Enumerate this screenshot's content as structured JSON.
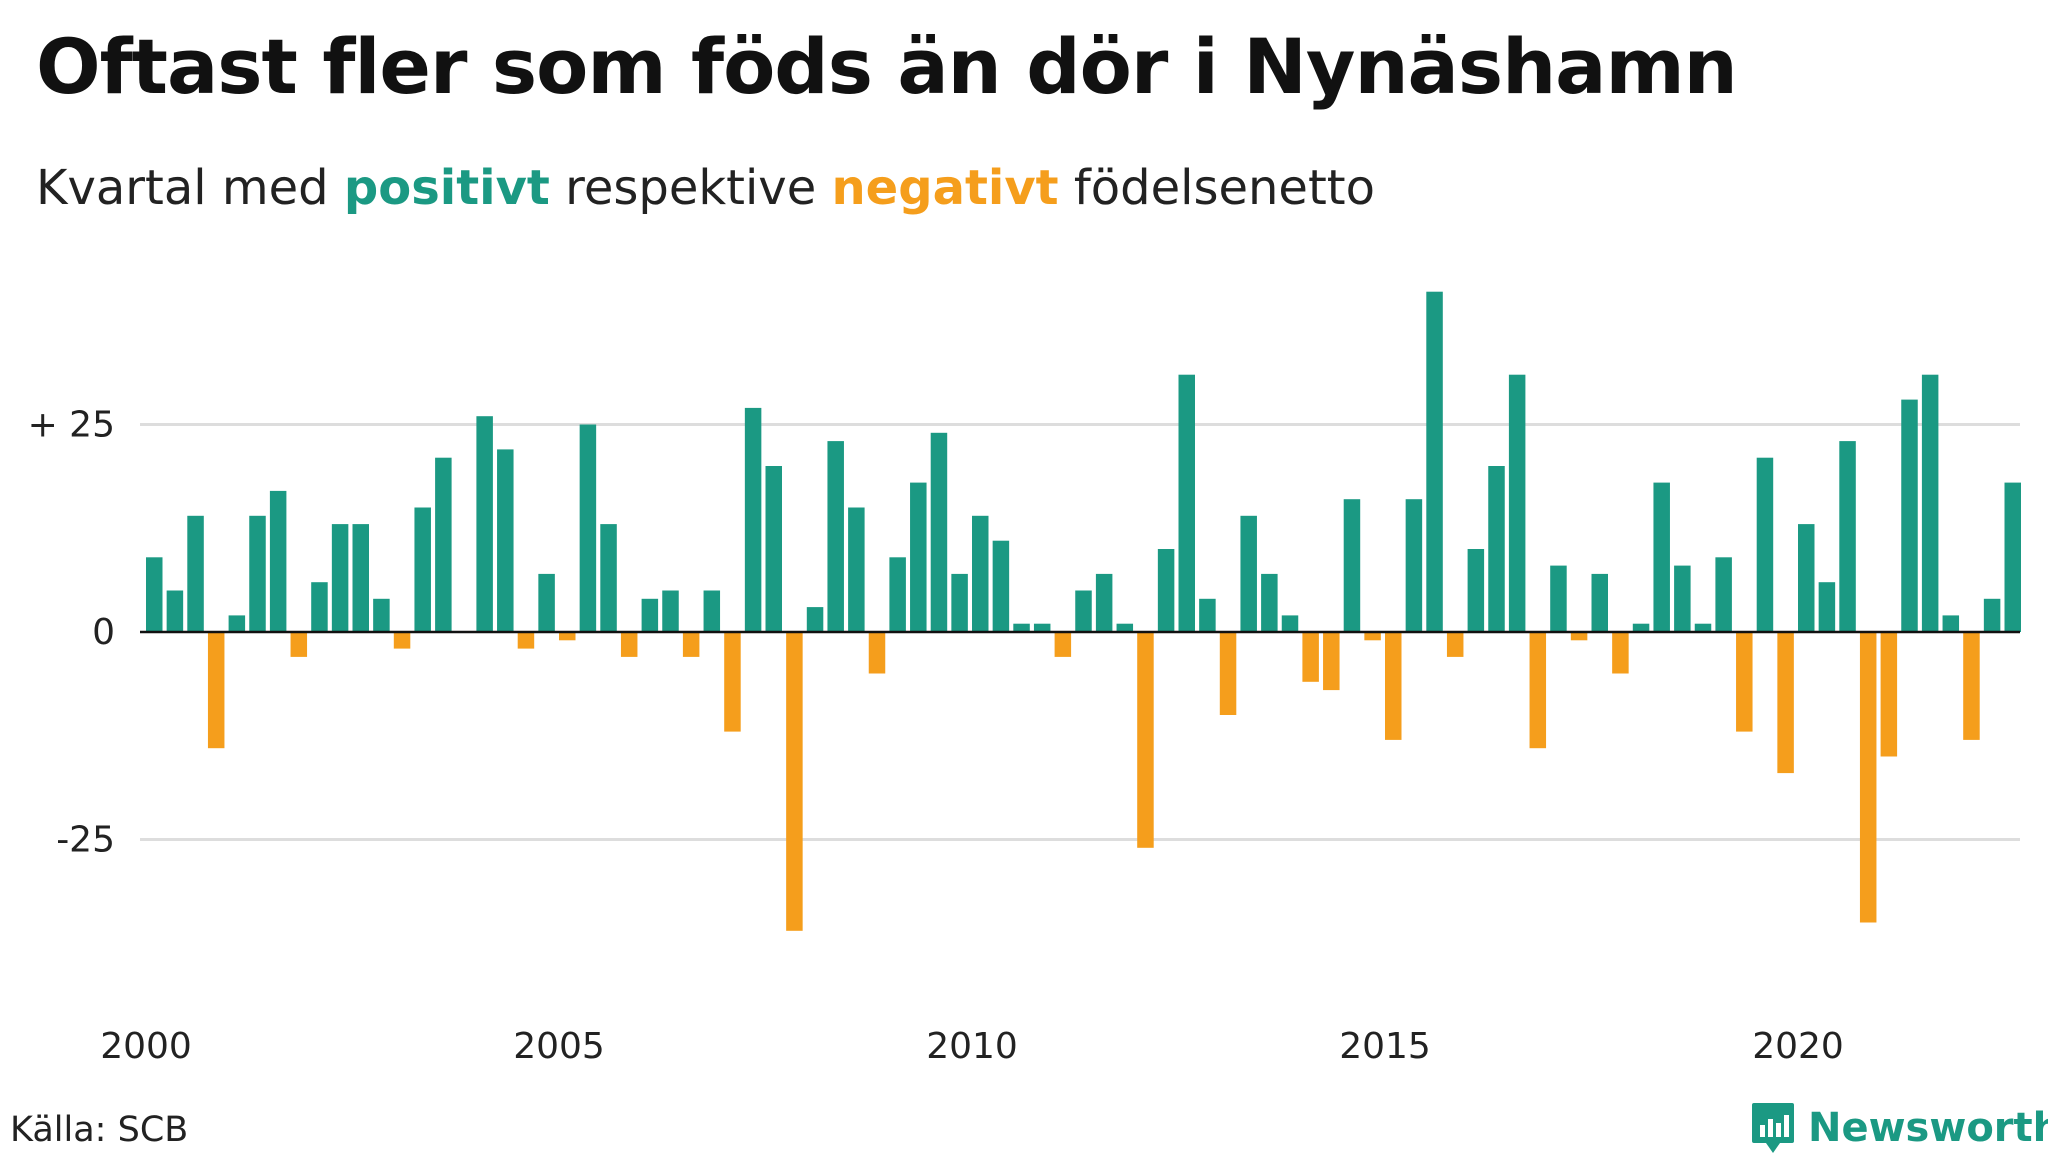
{
  "title": "Oftast fler som föds än dör i Nynäshamn",
  "subtitle": {
    "prefix": "Kvartal med ",
    "positive": "positivt",
    "middle": " respektive ",
    "negative": "negativt",
    "suffix": " födelsenetto"
  },
  "source": "Källa: SCB",
  "brand": "Newsworthy",
  "colors": {
    "positive": "#1b9983",
    "negative": "#f59e1c",
    "grid": "#dddddd",
    "zero": "#111111",
    "brand": "#1b9983"
  },
  "chart_data": {
    "type": "bar",
    "start_year": 2000,
    "periods_per_year": 4,
    "ylim": [
      -45,
      45
    ],
    "yticks": [
      {
        "value": 25,
        "label": "+ 25"
      },
      {
        "value": 0,
        "label": "0"
      },
      {
        "value": -25,
        "label": "-25"
      }
    ],
    "xticks": [
      "2000",
      "2005",
      "2010",
      "2015",
      "2020"
    ],
    "grid": true,
    "values": [
      9,
      5,
      14,
      -14,
      2,
      14,
      17,
      -3,
      6,
      13,
      13,
      4,
      -2,
      15,
      21,
      0,
      26,
      22,
      -2,
      7,
      -1,
      25,
      13,
      -3,
      4,
      5,
      -3,
      5,
      -12,
      27,
      20,
      -36,
      3,
      23,
      15,
      -5,
      9,
      18,
      24,
      7,
      14,
      11,
      1,
      1,
      -3,
      5,
      7,
      1,
      -26,
      10,
      31,
      4,
      -10,
      14,
      7,
      2,
      -6,
      -7,
      16,
      -1,
      -13,
      16,
      41,
      -3,
      10,
      20,
      31,
      -14,
      8,
      -1,
      7,
      -5,
      1,
      18,
      8,
      1,
      9,
      -12,
      21,
      -17,
      13,
      6,
      23,
      -35,
      -15,
      28,
      31,
      2,
      -13,
      4,
      18
    ]
  }
}
